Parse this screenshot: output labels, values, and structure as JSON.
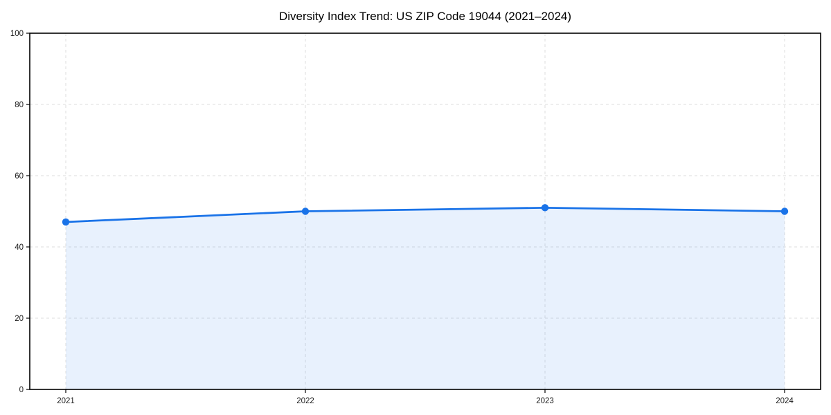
{
  "page": {
    "background_color": "#ffffff"
  },
  "chart_data": {
    "type": "area",
    "title": "Diversity Index Trend: US ZIP Code 19044 (2021–2024)",
    "categories": [
      "2021",
      "2022",
      "2023",
      "2024"
    ],
    "series": [
      {
        "name": "Diversity Index",
        "values": [
          47,
          50,
          51,
          50
        ]
      }
    ],
    "xlabel": "",
    "ylabel": "",
    "ylim": [
      0,
      100
    ],
    "yticks": [
      0,
      20,
      40,
      60,
      80,
      100
    ],
    "grid": "dashed",
    "legend_position": "none",
    "colors": {
      "line": "#1a73e8",
      "marker": "#1a73e8",
      "fill": "#1a73e8",
      "fill_opacity": 0.1,
      "grid": "#dedede",
      "axis": "#000000",
      "tick_label": "#1a1a1a",
      "title": "#000000"
    }
  }
}
